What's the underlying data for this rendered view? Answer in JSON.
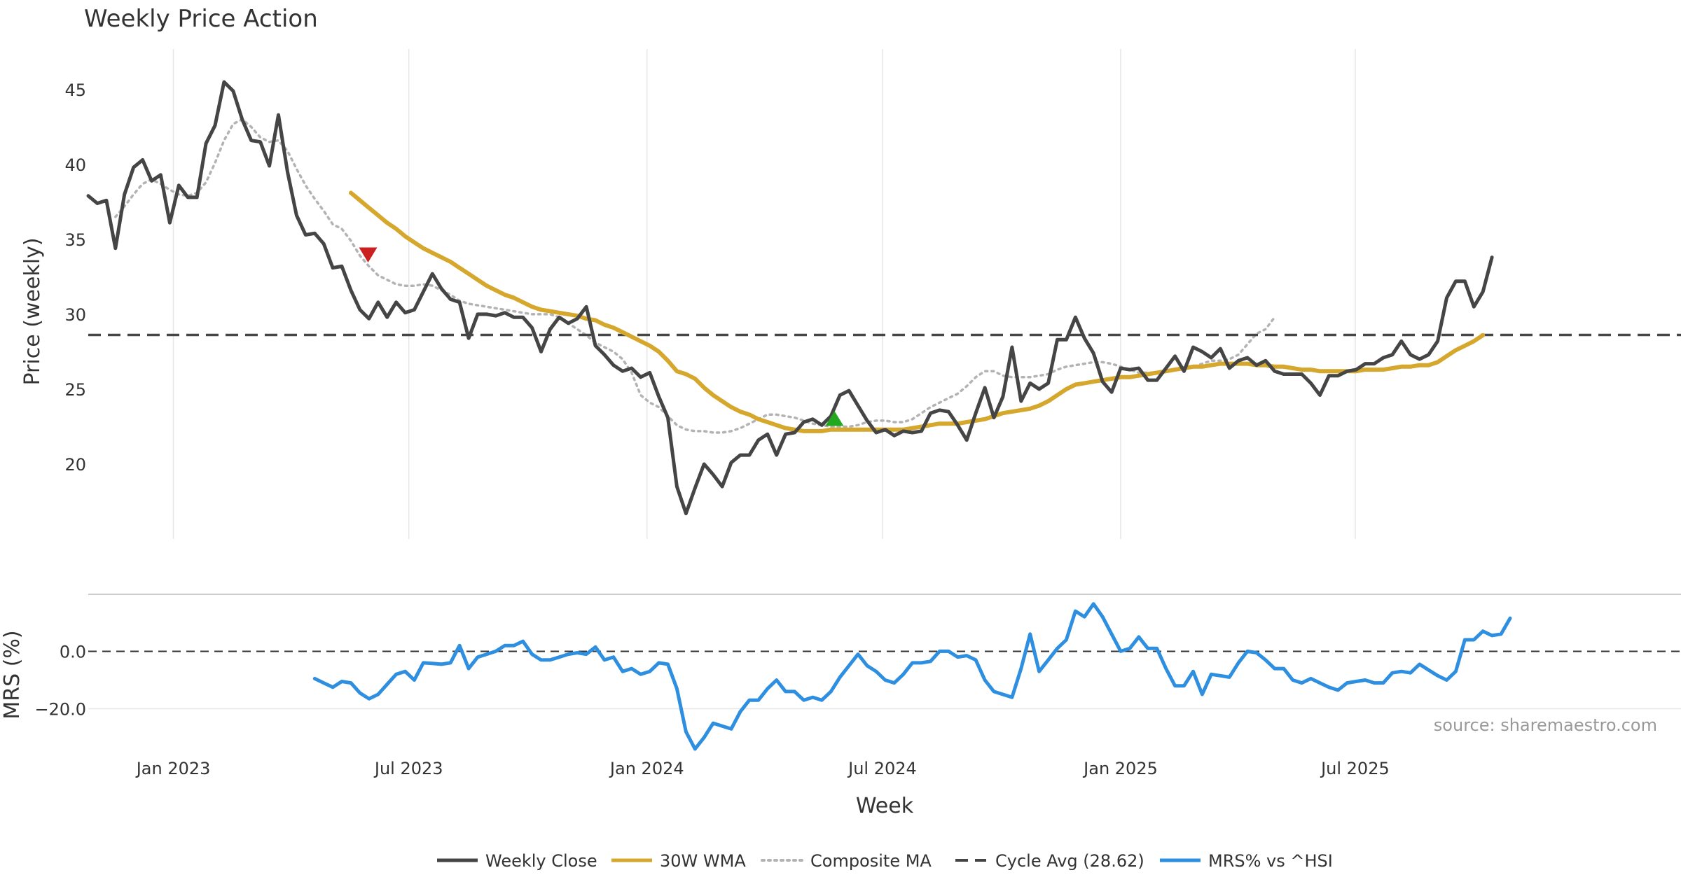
{
  "page": {
    "title": "Weekly Price Action"
  },
  "colors": {
    "close": "#454545",
    "wma": "#d6a72d",
    "composite": "#b3b3b3",
    "cycle": "#454545",
    "mrs": "#2e8fe0",
    "sell_marker": "#cc1f1f",
    "buy_marker": "#22a81f",
    "grid": "#e6e6e6",
    "text": "#333333",
    "source": "#999999"
  },
  "source_text": "source: sharemaestro.com",
  "legend": [
    "Weekly Close",
    "30W WMA",
    "Composite MA",
    "Cycle Avg (28.62)",
    "MRS% vs ^HSI"
  ],
  "chart_data": [
    {
      "type": "line",
      "title": "Weekly Price Action",
      "xlabel": "",
      "ylabel": "Price (weekly)",
      "ylim": [
        15.0,
        46.3
      ],
      "yticks": [
        20,
        25,
        30,
        35,
        40,
        45
      ],
      "x_start": "2022-10-28",
      "x_step": "1 week",
      "x_ticks": [
        {
          "label": "Jan 2023",
          "week": 9.4
        },
        {
          "label": "Jul 2023",
          "week": 35.4
        },
        {
          "label": "Jan 2024",
          "week": 61.7
        },
        {
          "label": "Jul 2024",
          "week": 87.7
        },
        {
          "label": "Jan 2025",
          "week": 114.0
        },
        {
          "label": "Jul 2025",
          "week": 139.9
        }
      ],
      "grid": true,
      "series": [
        {
          "name": "Weekly Close",
          "style": "solid",
          "start_week": 0,
          "values": [
            37.9,
            37.4,
            37.6,
            34.4,
            38.0,
            39.8,
            40.3,
            38.9,
            39.3,
            36.1,
            38.6,
            37.8,
            37.8,
            41.4,
            42.6,
            45.5,
            44.9,
            43.0,
            41.6,
            41.5,
            39.9,
            43.3,
            39.5,
            36.6,
            35.3,
            35.4,
            34.7,
            33.1,
            33.2,
            31.6,
            30.3,
            29.7,
            30.8,
            29.8,
            30.8,
            30.1,
            30.3,
            31.5,
            32.7,
            31.7,
            31.0,
            30.8,
            28.4,
            30.0,
            30.0,
            29.9,
            30.1,
            29.8,
            29.8,
            29.1,
            27.5,
            29.0,
            29.8,
            29.4,
            29.7,
            30.5,
            27.9,
            27.3,
            26.6,
            26.2,
            26.4,
            25.8,
            26.1,
            24.5,
            23.1,
            18.5,
            16.7,
            18.4,
            20.0,
            19.3,
            18.5,
            20.1,
            20.6,
            20.6,
            21.6,
            22.0,
            20.6,
            22.0,
            22.1,
            22.8,
            23.0,
            22.6,
            23.2,
            24.6,
            24.9,
            23.9,
            22.9,
            22.1,
            22.3,
            21.9,
            22.2,
            22.1,
            22.2,
            23.4,
            23.6,
            23.5,
            22.6,
            21.6,
            23.4,
            25.1,
            23.1,
            24.5,
            27.8,
            24.2,
            25.4,
            25.0,
            25.4,
            28.3,
            28.3,
            29.8,
            28.4,
            27.4,
            25.5,
            24.8,
            26.4,
            26.3,
            26.4,
            25.6,
            25.6,
            26.4,
            27.2,
            26.2,
            27.8,
            27.5,
            27.1,
            27.7,
            26.4,
            26.9,
            27.1,
            26.6,
            26.9,
            26.2,
            26.0,
            26.0,
            26.0,
            25.4,
            24.6,
            25.9,
            25.9,
            26.2,
            26.3,
            26.7,
            26.7,
            27.1,
            27.3,
            28.2,
            27.3,
            27.0,
            27.3,
            28.2,
            31.1,
            32.2,
            32.2,
            30.5,
            31.5,
            33.8
          ]
        },
        {
          "name": "30W WMA",
          "style": "solid",
          "start_week": 29,
          "values": [
            38.1,
            37.6,
            37.1,
            36.6,
            36.1,
            35.7,
            35.2,
            34.8,
            34.4,
            34.1,
            33.8,
            33.5,
            33.1,
            32.7,
            32.3,
            31.9,
            31.6,
            31.3,
            31.1,
            30.8,
            30.5,
            30.3,
            30.2,
            30.1,
            30.0,
            29.9,
            29.7,
            29.6,
            29.3,
            29.1,
            28.8,
            28.5,
            28.2,
            27.9,
            27.5,
            26.9,
            26.2,
            26.0,
            25.7,
            25.1,
            24.6,
            24.2,
            23.8,
            23.5,
            23.3,
            23.0,
            22.8,
            22.6,
            22.4,
            22.3,
            22.2,
            22.2,
            22.2,
            22.3,
            22.3,
            22.3,
            22.3,
            22.3,
            22.3,
            22.3,
            22.3,
            22.3,
            22.4,
            22.5,
            22.6,
            22.7,
            22.7,
            22.7,
            22.8,
            22.9,
            23.0,
            23.2,
            23.4,
            23.5,
            23.6,
            23.7,
            23.9,
            24.2,
            24.6,
            25.0,
            25.3,
            25.4,
            25.5,
            25.6,
            25.7,
            25.8,
            25.8,
            25.9,
            26.0,
            26.1,
            26.2,
            26.3,
            26.4,
            26.5,
            26.5,
            26.6,
            26.7,
            26.7,
            26.7,
            26.7,
            26.6,
            26.6,
            26.5,
            26.5,
            26.4,
            26.3,
            26.3,
            26.2,
            26.2,
            26.2,
            26.2,
            26.2,
            26.3,
            26.3,
            26.3,
            26.4,
            26.5,
            26.5,
            26.6,
            26.6,
            26.8,
            27.2,
            27.6,
            27.9,
            28.2,
            28.6
          ]
        },
        {
          "name": "Composite MA",
          "style": "dotted",
          "start_week": 3,
          "values": [
            36.5,
            37.2,
            38.0,
            38.7,
            39.0,
            38.7,
            38.3,
            38.0,
            37.9,
            38.1,
            38.8,
            40.1,
            41.6,
            42.7,
            43.0,
            42.5,
            41.8,
            41.5,
            41.6,
            40.9,
            39.7,
            38.6,
            37.7,
            36.9,
            36.0,
            35.7,
            34.9,
            33.9,
            33.2,
            32.6,
            32.3,
            32.0,
            31.9,
            31.9,
            32.0,
            31.9,
            31.6,
            31.3,
            30.9,
            30.7,
            30.6,
            30.5,
            30.4,
            30.3,
            30.2,
            30.1,
            30.0,
            30.0,
            30.0,
            29.8,
            29.4,
            29.0,
            28.6,
            28.1,
            27.8,
            27.5,
            27.0,
            26.1,
            24.6,
            24.1,
            23.8,
            23.2,
            22.6,
            22.3,
            22.2,
            22.2,
            22.1,
            22.1,
            22.2,
            22.4,
            22.7,
            23.0,
            23.3,
            23.3,
            23.2,
            23.1,
            22.9,
            22.7,
            22.6,
            22.5,
            22.5,
            22.5,
            22.6,
            22.8,
            22.9,
            22.9,
            22.8,
            22.8,
            23.0,
            23.4,
            23.8,
            24.1,
            24.4,
            24.7,
            25.2,
            25.8,
            26.2,
            26.2,
            25.9,
            25.8,
            25.8,
            25.8,
            25.9,
            26.0,
            26.3,
            26.5,
            26.6,
            26.7,
            26.8,
            26.8,
            26.7,
            26.5,
            26.3,
            26.1,
            26.1,
            26.1,
            26.2,
            26.3,
            26.4,
            26.5,
            26.7,
            26.9,
            26.9,
            27.0,
            27.3,
            28.0,
            28.7,
            29.0,
            29.8
          ]
        },
        {
          "name": "Cycle Avg (28.62)",
          "style": "dashed",
          "constant": 28.62
        }
      ],
      "markers": [
        {
          "type": "sell",
          "shape": "triangle-down",
          "week": 30.9,
          "value": 34.0
        },
        {
          "type": "buy",
          "shape": "triangle-up",
          "week": 82.4,
          "value": 23.0
        }
      ]
    },
    {
      "type": "line",
      "title": "",
      "xlabel": "Week",
      "ylabel": "MRS (%)",
      "ylim": [
        -34.0,
        19.6
      ],
      "yticks": [
        0.0,
        -20.0
      ],
      "ytick_labels": [
        "0.0",
        "−20.0"
      ],
      "grid": true,
      "series": [
        {
          "name": "MRS% vs ^HSI",
          "style": "solid",
          "start_week": 25,
          "values": [
            -9.5,
            -11.0,
            -12.5,
            -10.5,
            -11.0,
            -14.5,
            -16.5,
            -15.0,
            -11.5,
            -8.0,
            -7.0,
            -10.0,
            -4.0,
            -4.2,
            -4.5,
            -4.0,
            2.0,
            -6.0,
            -2.0,
            -1.0,
            0.0,
            2.0,
            2.0,
            3.5,
            -1.0,
            -3.0,
            -3.0,
            -2.0,
            -1.0,
            -0.5,
            -1.0,
            1.5,
            -3.0,
            -2.0,
            -7.0,
            -6.0,
            -8.0,
            -7.0,
            -4.0,
            -4.5,
            -13.0,
            -28.0,
            -34.0,
            -30.0,
            -25.0,
            -26.0,
            -27.0,
            -21.0,
            -17.0,
            -17.0,
            -13.0,
            -10.0,
            -14.0,
            -14.0,
            -17.0,
            -16.0,
            -17.0,
            -14.0,
            -9.0,
            -5.0,
            -1.0,
            -5.0,
            -7.0,
            -10.0,
            -11.0,
            -8.0,
            -4.0,
            -4.0,
            -3.5,
            0.0,
            0.0,
            -2.0,
            -1.5,
            -3.0,
            -10.0,
            -14.0,
            -15.0,
            -16.0,
            -6.0,
            6.0,
            -7.0,
            -3.0,
            1.0,
            4.0,
            14.0,
            12.0,
            16.5,
            12.0,
            6.0,
            0.0,
            1.0,
            5.0,
            1.0,
            1.0,
            -6.0,
            -12.0,
            -12.0,
            -7.0,
            -15.0,
            -8.0,
            -8.5,
            -9.0,
            -4.0,
            0.0,
            -0.5,
            -3.0,
            -6.0,
            -6.0,
            -10.0,
            -11.0,
            -9.5,
            -11.0,
            -12.5,
            -13.5,
            -11.0,
            -10.5,
            -10.0,
            -11.0,
            -11.0,
            -7.5,
            -7.0,
            -7.5,
            -4.5,
            -6.5,
            -8.5,
            -10.0,
            -7.0,
            4.0,
            4.0,
            7.0,
            5.5,
            6.0,
            11.5
          ]
        },
        {
          "name": "zero line",
          "style": "dashed",
          "constant": 0.0
        }
      ]
    }
  ]
}
